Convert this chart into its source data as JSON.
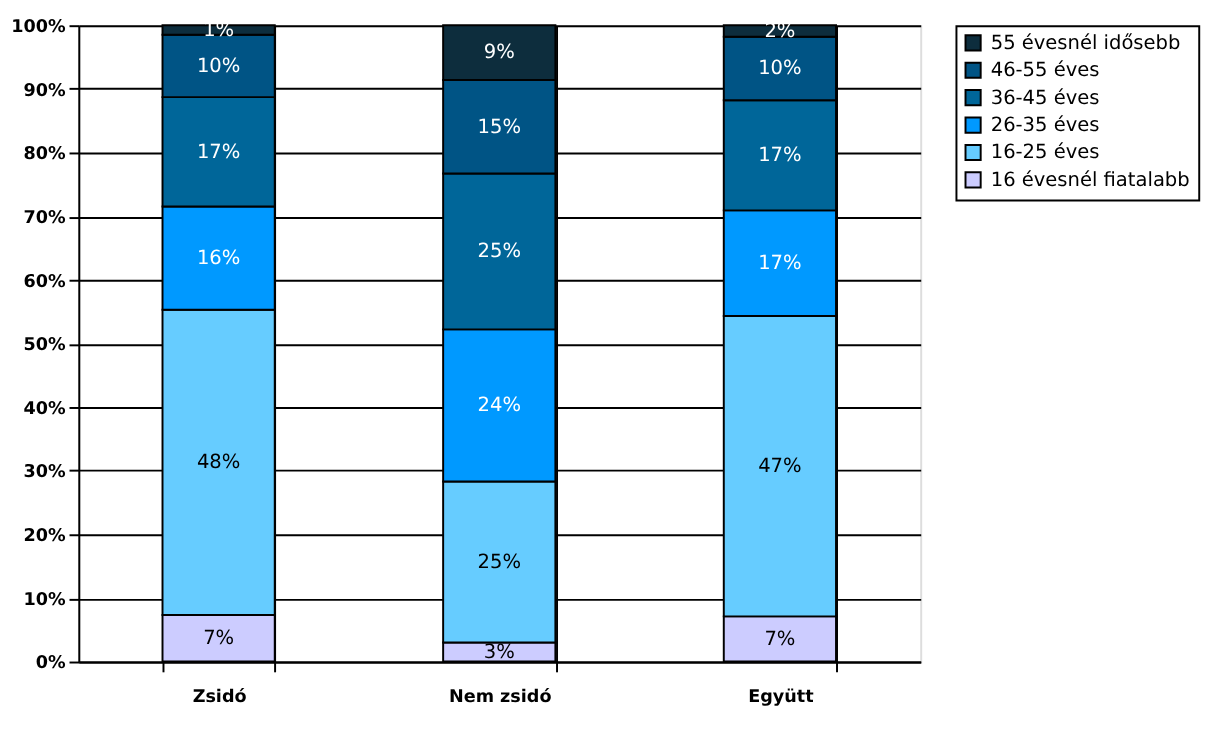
{
  "chart_data": {
    "type": "bar",
    "stacked": true,
    "categories": [
      "Zsidó",
      "Nem zsidó",
      "Együtt"
    ],
    "series": [
      {
        "name": "16 évesnél fiatalabb",
        "color": "#ccccff",
        "values": [
          7.3,
          3.0,
          7.1
        ],
        "value_labels": [
          "7%",
          "3%",
          "7%"
        ]
      },
      {
        "name": "16-25 éves",
        "color": "#66ccff",
        "values": [
          48.0,
          25.3,
          47.2
        ],
        "value_labels": [
          "48%",
          "25%",
          "47%"
        ]
      },
      {
        "name": "26-35 éves",
        "color": "#0099ff",
        "values": [
          16.2,
          23.9,
          16.6
        ],
        "value_labels": [
          "16%",
          "24%",
          "17%"
        ]
      },
      {
        "name": "36-45 éves",
        "color": "#006699",
        "values": [
          17.2,
          24.5,
          17.3
        ],
        "value_labels": [
          "17%",
          "25%",
          "17%"
        ]
      },
      {
        "name": "46-55 éves",
        "color": "#005485",
        "values": [
          9.8,
          14.7,
          10.0
        ],
        "value_labels": [
          "10%",
          "15%",
          "10%"
        ]
      },
      {
        "name": "55 évesnél idősebb",
        "color": "#0d2d3d",
        "values": [
          1.5,
          8.6,
          1.8
        ],
        "value_labels": [
          "1%",
          "9%",
          "2%"
        ]
      }
    ],
    "ylim": [
      0,
      100
    ],
    "yticks": [
      {
        "value": 0,
        "label": "0%"
      },
      {
        "value": 10,
        "label": "10%"
      },
      {
        "value": 20,
        "label": "20%"
      },
      {
        "value": 30,
        "label": "30%"
      },
      {
        "value": 40,
        "label": "40%"
      },
      {
        "value": 50,
        "label": "50%"
      },
      {
        "value": 60,
        "label": "60%"
      },
      {
        "value": 70,
        "label": "70%"
      },
      {
        "value": 80,
        "label": "80%"
      },
      {
        "value": 90,
        "label": "90%"
      },
      {
        "value": 100,
        "label": "100%"
      }
    ],
    "grid": true,
    "legend": "right"
  }
}
